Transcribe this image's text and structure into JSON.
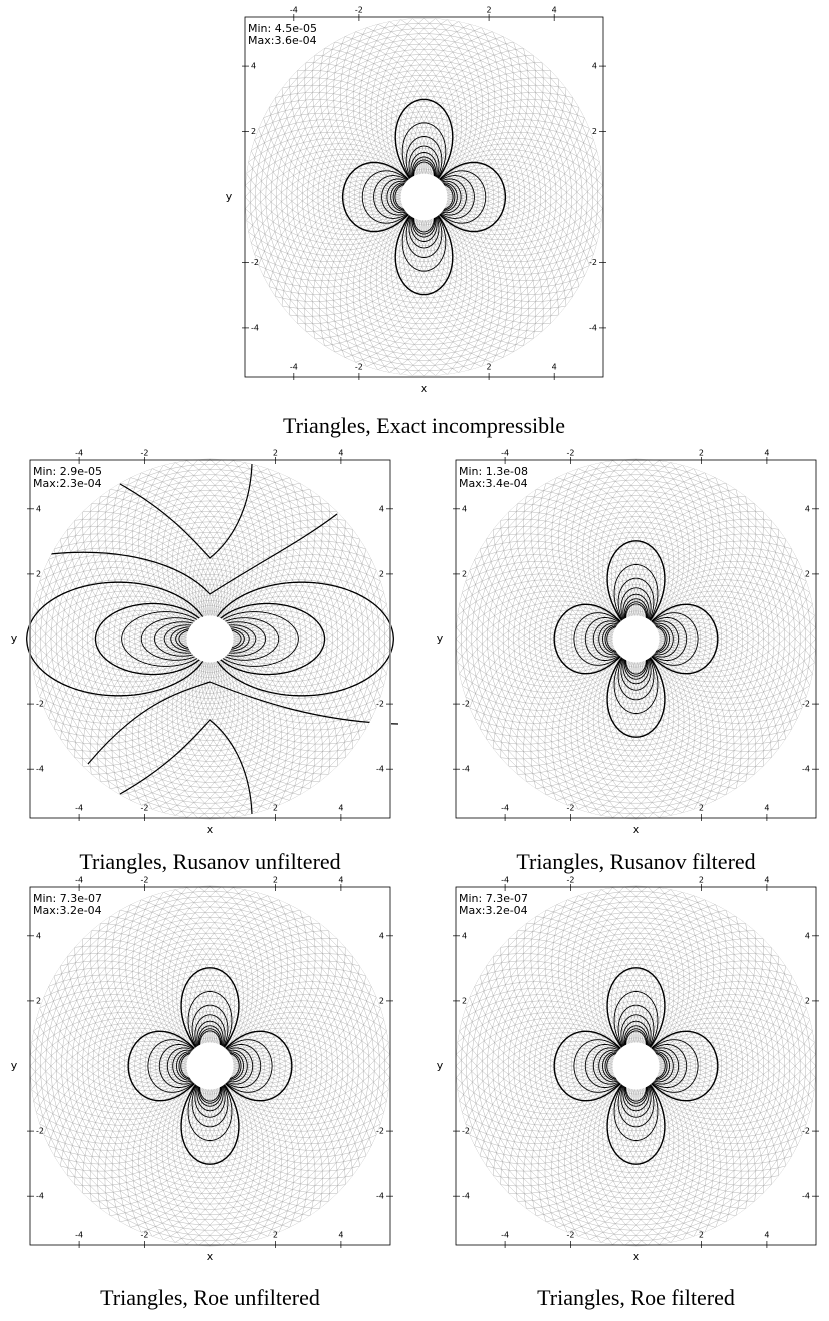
{
  "panels": [
    {
      "caption": "Triangles, Exact incompressible",
      "min": "Min: 4.5e-05",
      "max": "Max:3.6e-04",
      "xlabel": "x",
      "ylabel": "y",
      "xlim": [
        -5.5,
        5.5
      ],
      "ylim": [
        -5.5,
        5.5
      ],
      "xticks": [
        -4,
        -2,
        2,
        4
      ],
      "yticks": [
        4,
        2,
        -2,
        -4
      ]
    },
    {
      "caption": "Triangles, Rusanov unfiltered",
      "min": "Min: 2.9e-05",
      "max": "Max:2.3e-04",
      "xlabel": "x",
      "ylabel": "y",
      "xlim": [
        -5.5,
        5.5
      ],
      "ylim": [
        -5.5,
        5.5
      ],
      "xticks": [
        -4,
        -2,
        2,
        4
      ],
      "yticks": [
        4,
        2,
        -2,
        -4
      ]
    },
    {
      "caption": "Triangles, Rusanov filtered",
      "min": "Min: 1.3e-08",
      "max": "Max:3.4e-04",
      "xlabel": "x",
      "ylabel": "y",
      "xlim": [
        -5.5,
        5.5
      ],
      "ylim": [
        -5.5,
        5.5
      ],
      "xticks": [
        -4,
        -2,
        2,
        4
      ],
      "yticks": [
        4,
        2,
        -2,
        -4
      ]
    },
    {
      "caption": "Triangles, Roe unfiltered",
      "min": "Min: 7.3e-07",
      "max": "Max:3.2e-04",
      "xlabel": "x",
      "ylabel": "y",
      "xlim": [
        -5.5,
        5.5
      ],
      "ylim": [
        -5.5,
        5.5
      ],
      "xticks": [
        -4,
        -2,
        2,
        4
      ],
      "yticks": [
        4,
        2,
        -2,
        -4
      ]
    },
    {
      "caption": "Triangles, Roe filtered",
      "min": "Min: 7.3e-07",
      "max": "Max:3.2e-04",
      "xlabel": "x",
      "ylabel": "y",
      "xlim": [
        -5.5,
        5.5
      ],
      "ylim": [
        -5.5,
        5.5
      ],
      "xticks": [
        -4,
        -2,
        2,
        4
      ],
      "yticks": [
        4,
        2,
        -2,
        -4
      ]
    }
  ]
}
